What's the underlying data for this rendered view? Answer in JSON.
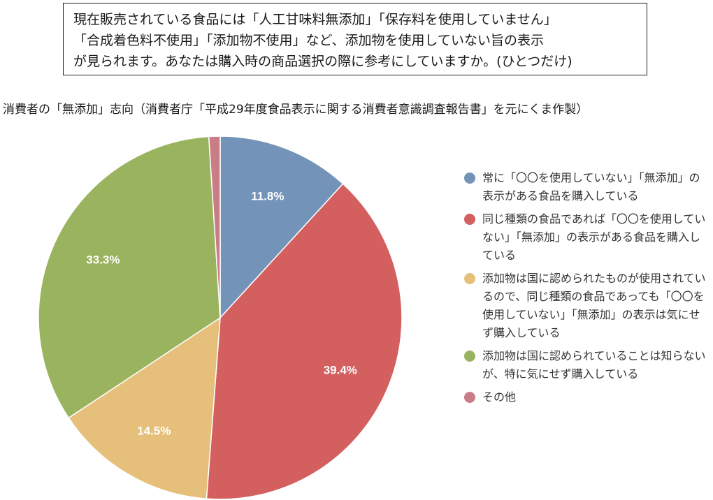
{
  "question": {
    "lines": [
      "現在販売されている食品には「人工甘味料無添加」「保存料を使用していません」",
      "「合成着色料不使用」「添加物不使用」など、添加物を使用していない旨の表示",
      "が見られます。あなたは購入時の商品選択の際に参考にしていますか。(ひとつだけ)"
    ]
  },
  "chart_data": {
    "type": "pie",
    "title": "消費者の「無添加」志向（消費者庁「平成29年度食品表示に関する消費者意識調査報告書」を元にくま作製）",
    "categories": [
      "常に「〇〇を使用していない」「無添加」の表示がある食品を購入している",
      "同じ種類の食品であれば「〇〇を使用していない」「無添加」の表示がある食品を購入している",
      "添加物は国に認められたものが使用されているので、同じ種類の食品であっても「〇〇を使用していない」「無添加」の表示は気にせず購入している",
      "添加物は国に認められていることは知らないが、特に気にせず購入している",
      "その他"
    ],
    "values": [
      11.8,
      39.4,
      14.5,
      33.3,
      1.0
    ],
    "data_labels": [
      "11.8%",
      "39.4%",
      "14.5%",
      "33.3%",
      ""
    ],
    "colors": [
      "#7393b9",
      "#d35f5f",
      "#e6c07b",
      "#9ab35f",
      "#c97d87"
    ],
    "legend_position": "right"
  }
}
